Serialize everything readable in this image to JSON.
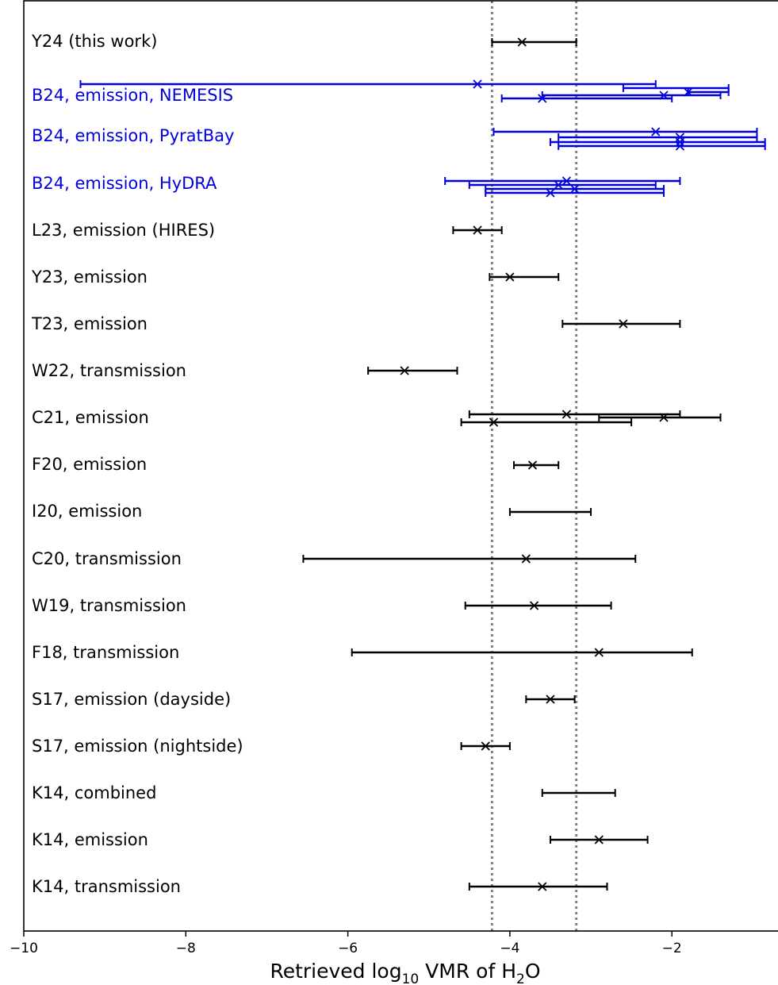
{
  "chart_data": {
    "type": "scatter",
    "title": "",
    "xlabel": {
      "pre": "Retrieved log",
      "sub1": "10",
      "mid": " VMR of H",
      "sub2": "2",
      "post": "O"
    },
    "xlim": [
      -10,
      -0.7
    ],
    "xticks": [
      -10,
      -8,
      -6,
      -4,
      -2
    ],
    "xtick_labels": [
      "−10",
      "−8",
      "−6",
      "−4",
      "−2"
    ],
    "reference_band": [
      -4.22,
      -3.18
    ],
    "colors": {
      "black": "#000000",
      "blue": "#0000dd",
      "ref_line": "#808080"
    },
    "rows": [
      {
        "label": "Y24 (this work)",
        "color": "black",
        "points": [
          {
            "x": -3.85,
            "lo": -4.22,
            "hi": -3.18,
            "marker": true
          }
        ]
      },
      {
        "label": "B24, emission, NEMESIS",
        "color": "blue",
        "points": [
          {
            "x": -4.4,
            "lo": -9.3,
            "hi": -2.2,
            "marker": true
          },
          {
            "x": -2.6,
            "lo": -2.6,
            "hi": -1.3,
            "marker": false
          },
          {
            "x": -1.8,
            "lo": -1.8,
            "hi": -1.3,
            "marker": true
          },
          {
            "x": -2.1,
            "lo": -3.6,
            "hi": -1.4,
            "marker": true
          },
          {
            "x": -3.6,
            "lo": -4.1,
            "hi": -2.0,
            "marker": true
          }
        ]
      },
      {
        "label": "B24, emission, PyratBay",
        "color": "blue",
        "points": [
          {
            "x": -2.2,
            "lo": -4.2,
            "hi": -0.95,
            "marker": true
          },
          {
            "x": -1.9,
            "lo": -3.4,
            "hi": -0.95,
            "marker": true
          },
          {
            "x": -1.9,
            "lo": -3.5,
            "hi": -0.85,
            "marker": true
          },
          {
            "x": -1.9,
            "lo": -3.4,
            "hi": -0.85,
            "marker": true
          }
        ]
      },
      {
        "label": "B24, emission, HyDRA",
        "color": "blue",
        "points": [
          {
            "x": -3.3,
            "lo": -4.8,
            "hi": -1.9,
            "marker": true
          },
          {
            "x": -3.4,
            "lo": -4.5,
            "hi": -2.2,
            "marker": true
          },
          {
            "x": -3.2,
            "lo": -4.3,
            "hi": -2.1,
            "marker": true
          },
          {
            "x": -3.5,
            "lo": -4.3,
            "hi": -2.1,
            "marker": true
          }
        ]
      },
      {
        "label": "L23, emission (HIRES)",
        "color": "black",
        "points": [
          {
            "x": -4.4,
            "lo": -4.7,
            "hi": -4.1,
            "marker": true
          }
        ]
      },
      {
        "label": "Y23, emission",
        "color": "black",
        "points": [
          {
            "x": -4.0,
            "lo": -4.25,
            "hi": -3.4,
            "marker": true
          }
        ]
      },
      {
        "label": "T23, emission",
        "color": "black",
        "points": [
          {
            "x": -2.6,
            "lo": -3.35,
            "hi": -1.9,
            "marker": true
          }
        ]
      },
      {
        "label": "W22, transmission",
        "color": "black",
        "points": [
          {
            "x": -5.3,
            "lo": -5.75,
            "hi": -4.65,
            "marker": true
          }
        ]
      },
      {
        "label": "C21, emission",
        "color": "black",
        "points": [
          {
            "x": -3.3,
            "lo": -4.5,
            "hi": -1.9,
            "marker": true
          },
          {
            "x": -2.1,
            "lo": -2.9,
            "hi": -1.4,
            "marker": true
          },
          {
            "x": -4.2,
            "lo": -4.6,
            "hi": -2.5,
            "marker": true
          }
        ]
      },
      {
        "label": "F20, emission",
        "color": "black",
        "points": [
          {
            "x": -3.72,
            "lo": -3.95,
            "hi": -3.4,
            "marker": true
          }
        ]
      },
      {
        "label": "I20, emission",
        "color": "black",
        "points": [
          {
            "x": -3.5,
            "lo": -4.0,
            "hi": -3.0,
            "marker": false
          }
        ]
      },
      {
        "label": "C20, transmission",
        "color": "black",
        "points": [
          {
            "x": -3.8,
            "lo": -6.55,
            "hi": -2.45,
            "marker": true
          }
        ]
      },
      {
        "label": "W19, transmission",
        "color": "black",
        "points": [
          {
            "x": -3.7,
            "lo": -4.55,
            "hi": -2.75,
            "marker": true
          }
        ]
      },
      {
        "label": "F18, transmission",
        "color": "black",
        "points": [
          {
            "x": -2.9,
            "lo": -5.95,
            "hi": -1.75,
            "marker": true
          }
        ]
      },
      {
        "label": "S17, emission (dayside)",
        "color": "black",
        "points": [
          {
            "x": -3.5,
            "lo": -3.8,
            "hi": -3.2,
            "marker": true
          }
        ]
      },
      {
        "label": "S17, emission (nightside)",
        "color": "black",
        "points": [
          {
            "x": -4.3,
            "lo": -4.6,
            "hi": -4.0,
            "marker": true
          }
        ]
      },
      {
        "label": "K14, combined",
        "color": "black",
        "points": [
          {
            "x": -3.15,
            "lo": -3.6,
            "hi": -2.7,
            "marker": false
          }
        ]
      },
      {
        "label": "K14, emission",
        "color": "black",
        "points": [
          {
            "x": -2.9,
            "lo": -3.5,
            "hi": -2.3,
            "marker": true
          }
        ]
      },
      {
        "label": "K14, transmission",
        "color": "black",
        "points": [
          {
            "x": -3.6,
            "lo": -4.5,
            "hi": -2.8,
            "marker": true
          }
        ]
      }
    ]
  }
}
